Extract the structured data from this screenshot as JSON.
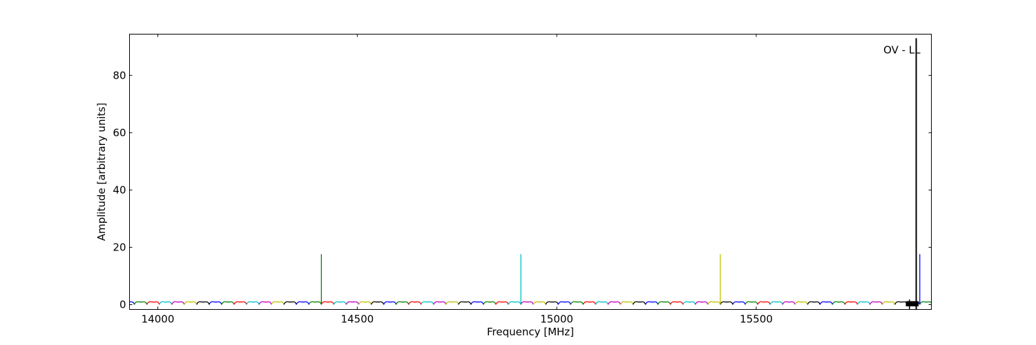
{
  "chart_data": {
    "type": "line",
    "title": "",
    "xlabel": "Frequency [MHz]",
    "ylabel": "Amplitude [arbitrary units]",
    "xlim": [
      13929,
      15939
    ],
    "ylim": [
      -1.7,
      94.4
    ],
    "xticks": [
      14000,
      14500,
      15000,
      15500
    ],
    "yticks": [
      0,
      20,
      40,
      60,
      80
    ],
    "grid": false,
    "colors": [
      "#0000ff",
      "#008000",
      "#ff0000",
      "#00bfbf",
      "#bf00bf",
      "#bfbf00",
      "#000000"
    ],
    "baseline_segments": {
      "start": 13910,
      "width_mhz": 31.25,
      "count": 65,
      "peak": 1.0
    },
    "spikes": [
      {
        "x": 14410,
        "y": 17.6,
        "color": "#008000"
      },
      {
        "x": 14910,
        "y": 17.6,
        "color": "#00bfbf"
      },
      {
        "x": 15410,
        "y": 17.6,
        "color": "#bfbf00"
      },
      {
        "x": 15910,
        "y": 17.6,
        "color": "#0000ff"
      }
    ],
    "annotation": {
      "text": "OV - LL",
      "x": 15901,
      "y": 93,
      "color": "#000000"
    }
  }
}
